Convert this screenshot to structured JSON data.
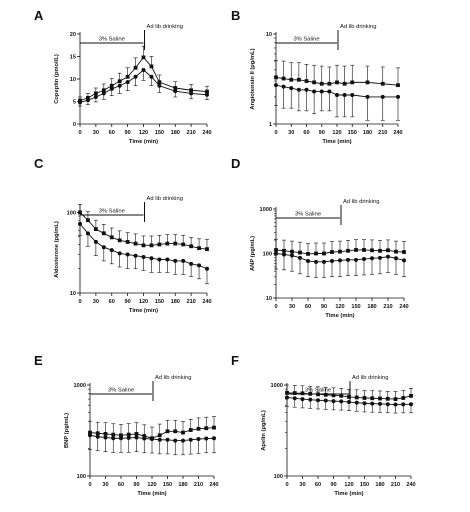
{
  "figure": {
    "background": "#ffffff",
    "ink": "#111111"
  },
  "chart_data": [
    {
      "panel_label": "A",
      "type": "line",
      "yscale": "linear",
      "x": [
        0,
        15,
        30,
        45,
        60,
        75,
        90,
        105,
        120,
        135,
        150,
        180,
        210,
        240
      ],
      "xticks": [
        0,
        30,
        60,
        90,
        120,
        150,
        180,
        210,
        240
      ],
      "xlim": [
        0,
        240
      ],
      "ylim": [
        0,
        20
      ],
      "yticks": [
        0,
        5,
        10,
        15,
        20
      ],
      "xlabel": "Time (min)",
      "ylabel": "Copeptin (pmol/L)",
      "saline_label": "3% Saline",
      "saline_range": [
        0,
        120
      ],
      "drink_label": "Ad lib drinking",
      "drink_x": 120,
      "series": [
        {
          "marker": "square",
          "values": [
            5.2,
            5.8,
            6.8,
            7.5,
            8.5,
            9.5,
            10.5,
            12.5,
            14.8,
            12.8,
            9.3,
            8.0,
            7.5,
            7.2
          ],
          "errors": [
            0.8,
            1.0,
            1.2,
            1.4,
            1.6,
            1.8,
            2.0,
            2.2,
            2.5,
            2.2,
            1.6,
            1.4,
            1.3,
            1.2
          ]
        },
        {
          "marker": "circle",
          "values": [
            4.8,
            5.3,
            6.0,
            6.8,
            7.8,
            8.5,
            9.3,
            10.5,
            12.0,
            10.5,
            8.5,
            7.3,
            6.8,
            6.5
          ],
          "errors": [
            0.8,
            1.0,
            1.1,
            1.3,
            1.5,
            1.7,
            1.9,
            2.0,
            2.3,
            2.0,
            1.5,
            1.3,
            1.2,
            1.1
          ]
        }
      ]
    },
    {
      "panel_label": "B",
      "type": "line",
      "yscale": "log",
      "x": [
        0,
        15,
        30,
        45,
        60,
        75,
        90,
        105,
        120,
        135,
        150,
        180,
        210,
        240
      ],
      "xticks": [
        0,
        30,
        60,
        90,
        120,
        150,
        180,
        210,
        240
      ],
      "xlim": [
        0,
        240
      ],
      "ylim": [
        1,
        10
      ],
      "yticks": [
        1,
        10
      ],
      "xlabel": "Time (min)",
      "ylabel": "Angiotensin II (pg/mL)",
      "saline_label": "3% Saline",
      "saline_range": [
        0,
        120
      ],
      "drink_label": "Ad lib drinking",
      "drink_x": 120,
      "series": [
        {
          "marker": "square",
          "values": [
            3.3,
            3.2,
            3.1,
            3.1,
            3.0,
            2.9,
            2.8,
            2.8,
            2.9,
            2.8,
            2.9,
            2.9,
            2.8,
            2.7
          ],
          "errors": [
            1.8,
            1.8,
            1.7,
            1.7,
            1.6,
            1.6,
            1.6,
            1.5,
            1.6,
            1.6,
            1.6,
            1.5,
            1.5,
            1.5
          ]
        },
        {
          "marker": "circle",
          "values": [
            2.7,
            2.6,
            2.5,
            2.4,
            2.4,
            2.3,
            2.3,
            2.3,
            2.1,
            2.1,
            2.1,
            2.0,
            2.0,
            2.0
          ],
          "errors": [
            1.1,
            1.1,
            1.0,
            1.0,
            1.0,
            1.0,
            0.9,
            0.9,
            0.9,
            0.9,
            0.9,
            0.9,
            0.9,
            0.9
          ]
        }
      ]
    },
    {
      "panel_label": "C",
      "type": "line",
      "yscale": "log",
      "x": [
        0,
        15,
        30,
        45,
        60,
        75,
        90,
        105,
        120,
        135,
        150,
        165,
        180,
        195,
        210,
        225,
        240
      ],
      "xticks": [
        0,
        30,
        60,
        90,
        120,
        150,
        180,
        210,
        240
      ],
      "xlim": [
        0,
        240
      ],
      "ylim": [
        10,
        120
      ],
      "yticks": [
        10,
        100
      ],
      "xlabel": "Time (min)",
      "ylabel": "Aldosterone (pg/mL)",
      "saline_label": "3% Saline",
      "saline_range": [
        0,
        120
      ],
      "drink_label": "Ad lib drinking",
      "drink_x": 120,
      "series": [
        {
          "marker": "square",
          "values": [
            100,
            80,
            62,
            55,
            49,
            45,
            43,
            41,
            39,
            39,
            40,
            41,
            41,
            40,
            38,
            36,
            35
          ],
          "errors": [
            25,
            22,
            18,
            16,
            15,
            14,
            13,
            13,
            12,
            12,
            12,
            12,
            12,
            12,
            11,
            11,
            11
          ]
        },
        {
          "marker": "circle",
          "values": [
            72,
            55,
            43,
            37,
            34,
            31,
            30,
            29,
            28,
            27,
            26,
            26,
            25,
            25,
            23,
            22,
            20
          ],
          "errors": [
            20,
            17,
            14,
            12,
            11,
            10,
            10,
            9,
            9,
            9,
            8,
            8,
            8,
            8,
            7,
            7,
            7
          ]
        }
      ]
    },
    {
      "panel_label": "D",
      "type": "line",
      "yscale": "log",
      "x": [
        0,
        15,
        30,
        45,
        60,
        75,
        90,
        105,
        120,
        135,
        150,
        165,
        180,
        195,
        210,
        225,
        240
      ],
      "xticks": [
        0,
        30,
        60,
        90,
        120,
        150,
        180,
        210,
        240
      ],
      "xlim": [
        0,
        240
      ],
      "ylim": [
        10,
        1000
      ],
      "yticks": [
        10,
        100,
        1000
      ],
      "xlabel": "Time (min)",
      "ylabel": "ANP (pg/mL)",
      "saline_label": "3% Saline",
      "saline_range": [
        0,
        120
      ],
      "drink_label": "Ad lib drinking",
      "drink_x": 120,
      "series": [
        {
          "marker": "square",
          "values": [
            120,
            115,
            110,
            105,
            98,
            100,
            100,
            108,
            110,
            115,
            120,
            120,
            118,
            115,
            118,
            110,
            108
          ],
          "errors": [
            90,
            85,
            80,
            75,
            70,
            72,
            72,
            78,
            80,
            82,
            85,
            85,
            84,
            82,
            84,
            80,
            78
          ]
        },
        {
          "marker": "circle",
          "values": [
            100,
            95,
            90,
            80,
            68,
            65,
            65,
            68,
            70,
            72,
            72,
            75,
            78,
            80,
            85,
            78,
            70
          ],
          "errors": [
            55,
            52,
            50,
            45,
            38,
            36,
            36,
            38,
            40,
            40,
            40,
            42,
            44,
            45,
            48,
            44,
            40
          ]
        }
      ]
    },
    {
      "panel_label": "E",
      "type": "line",
      "yscale": "log",
      "x": [
        0,
        15,
        30,
        45,
        60,
        75,
        90,
        105,
        120,
        135,
        150,
        165,
        180,
        195,
        210,
        225,
        240
      ],
      "xticks": [
        0,
        30,
        60,
        90,
        120,
        150,
        180,
        210,
        240
      ],
      "xlim": [
        0,
        240
      ],
      "ylim": [
        100,
        1000
      ],
      "yticks": [
        100,
        1000
      ],
      "xlabel": "Time (min)",
      "ylabel": "BNP (pg/mL)",
      "saline_label": "3% Saline",
      "saline_range": [
        0,
        120
      ],
      "drink_label": "Ad lib drinking",
      "drink_x": 120,
      "series": [
        {
          "marker": "square",
          "values": [
            300,
            295,
            290,
            285,
            280,
            285,
            290,
            275,
            260,
            280,
            310,
            310,
            300,
            320,
            330,
            335,
            340
          ],
          "errors": [
            100,
            95,
            95,
            90,
            90,
            92,
            95,
            90,
            85,
            92,
            100,
            100,
            98,
            100,
            105,
            108,
            110
          ]
        },
        {
          "marker": "circle",
          "values": [
            280,
            270,
            265,
            260,
            260,
            262,
            265,
            258,
            255,
            250,
            250,
            245,
            245,
            250,
            255,
            258,
            260
          ],
          "errors": [
            85,
            80,
            80,
            78,
            78,
            80,
            80,
            78,
            76,
            75,
            75,
            74,
            74,
            76,
            78,
            78,
            80
          ]
        }
      ]
    },
    {
      "panel_label": "F",
      "type": "line",
      "yscale": "log",
      "x": [
        0,
        15,
        30,
        45,
        60,
        75,
        90,
        105,
        120,
        135,
        150,
        165,
        180,
        195,
        210,
        225,
        240
      ],
      "xticks": [
        0,
        30,
        60,
        90,
        120,
        150,
        180,
        210,
        240
      ],
      "xlim": [
        0,
        240
      ],
      "ylim": [
        100,
        1000
      ],
      "yticks": [
        100,
        1000
      ],
      "xlabel": "Time (min)",
      "ylabel": "Apelin (pg/mL)",
      "saline_label": "3% Saline",
      "saline_range": [
        0,
        120
      ],
      "drink_label": "Ad lib drinking",
      "drink_x": 120,
      "series": [
        {
          "marker": "square",
          "values": [
            820,
            815,
            810,
            800,
            790,
            780,
            770,
            760,
            740,
            730,
            720,
            715,
            710,
            705,
            700,
            720,
            760
          ],
          "errors": [
            180,
            175,
            170,
            170,
            165,
            165,
            160,
            160,
            155,
            155,
            150,
            150,
            150,
            148,
            148,
            152,
            160
          ]
        },
        {
          "marker": "circle",
          "values": [
            730,
            715,
            700,
            690,
            680,
            675,
            665,
            660,
            650,
            640,
            630,
            625,
            620,
            615,
            610,
            612,
            615
          ],
          "errors": [
            150,
            145,
            140,
            138,
            135,
            134,
            132,
            130,
            128,
            126,
            124,
            122,
            120,
            120,
            118,
            118,
            120
          ]
        }
      ]
    }
  ]
}
